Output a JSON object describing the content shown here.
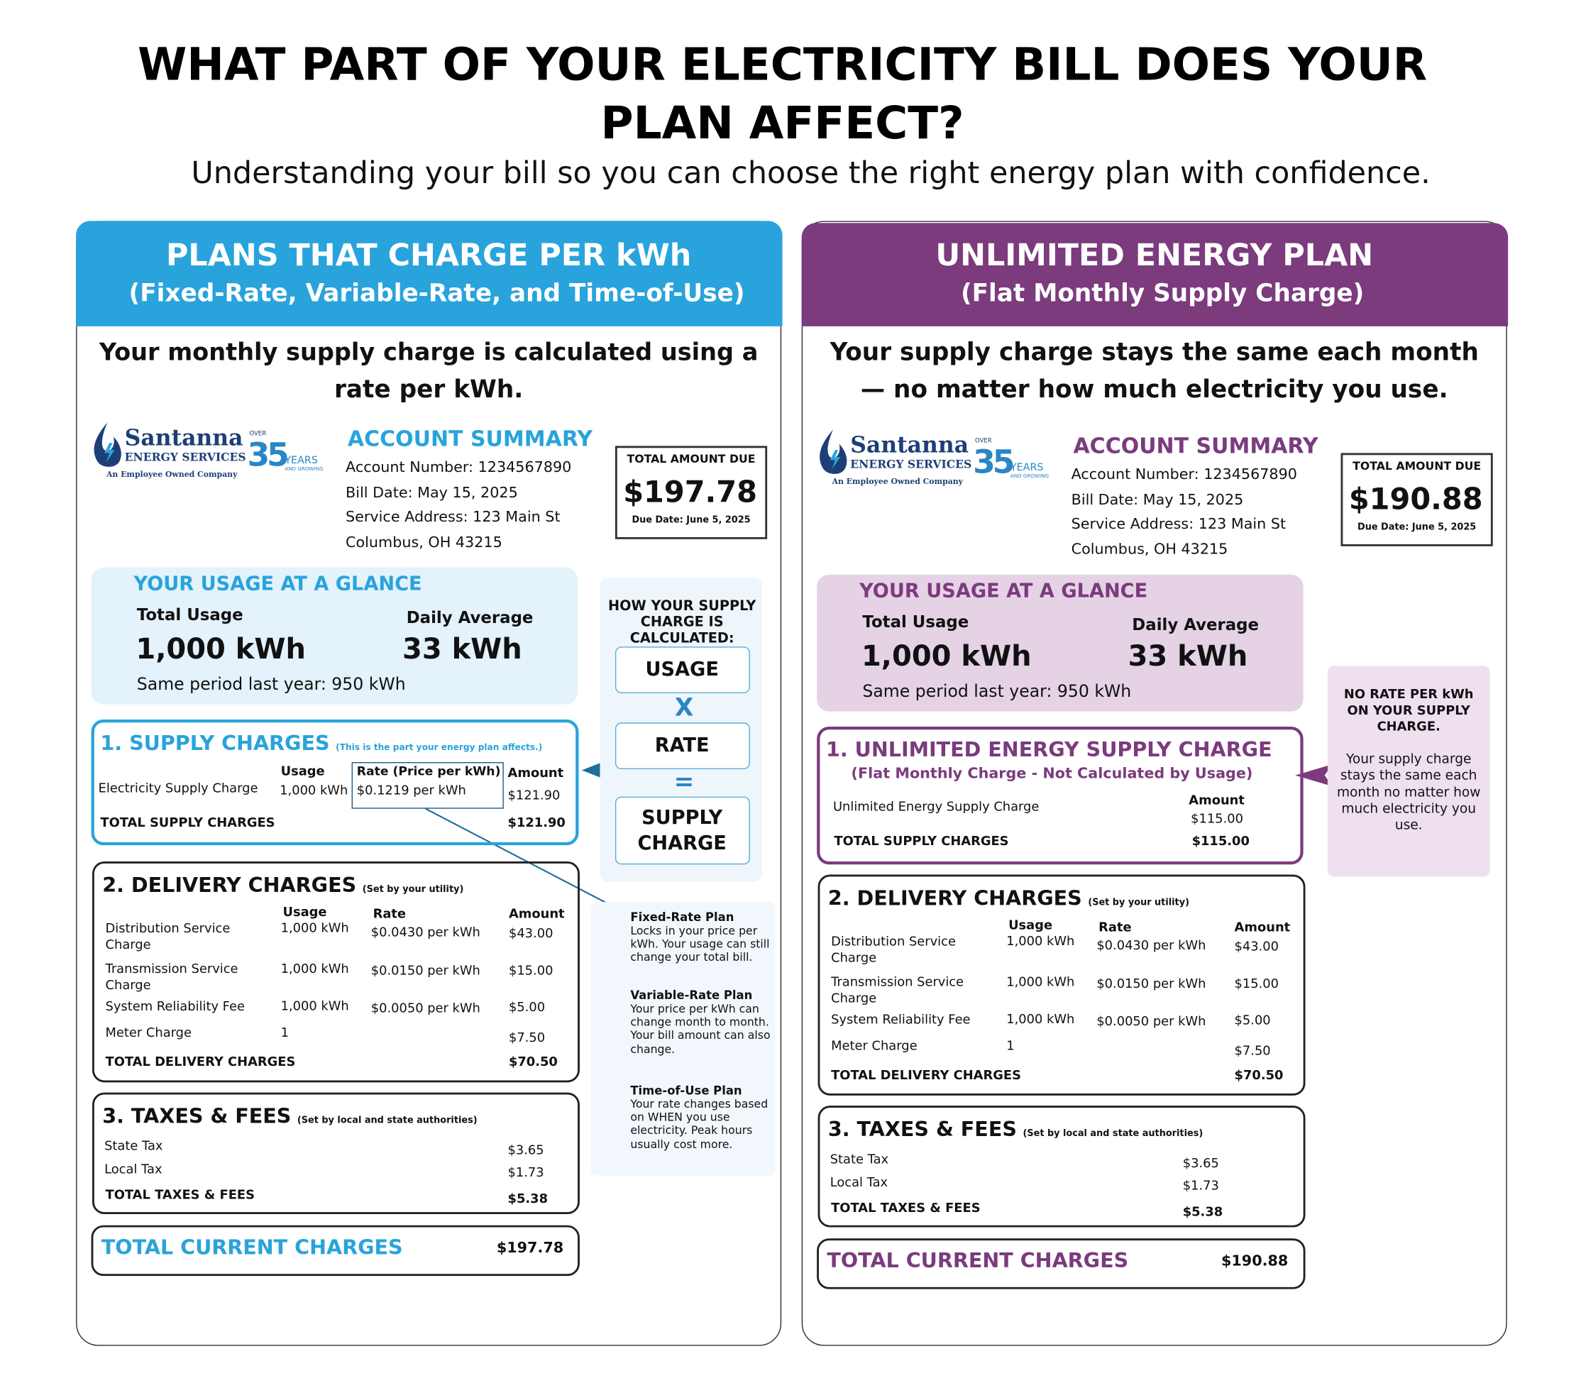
{
  "title": [
    "WHAT PART OF YOUR ELECTRICITY BILL DOES YOUR",
    "PLAN AFFECT?"
  ],
  "subtitle": "Understanding your bill so you can choose the right energy plan with confidence.",
  "left": {
    "header": "PLANS THAT CHARGE PER kWh",
    "subheader": "(Fixed-Rate, Variable-Rate, and Time-of-Use)",
    "intro": [
      "Your monthly supply charge is calculated using a",
      "rate per kWh."
    ],
    "logo": {
      "name": "Santanna",
      "line2": "ENERGY SERVICES",
      "tagline": "An Employee Owned Company",
      "over": "OVER",
      "number": "35",
      "years": "YEARS",
      "growing": "AND GROWING"
    },
    "account": {
      "title": "ACCOUNT SUMMARY",
      "lines": [
        "Account Number: 1234567890",
        "Bill Date: May 15, 2025",
        "Service Address: 123 Main St",
        "Columbus, OH 43215"
      ]
    },
    "total_due": {
      "label": "TOTAL AMOUNT DUE",
      "amount": "$197.78",
      "due_date": "Due Date: June 5, 2025"
    },
    "usage": {
      "title": "YOUR USAGE AT A GLANCE",
      "total_label": "Total Usage",
      "total_value": "1,000 kWh",
      "daily_label": "Daily Average",
      "daily_value": "33 kWh",
      "last_year": "Same period last year: 950 kWh"
    },
    "supply": {
      "title": "1. SUPPLY CHARGES",
      "note": "(This is the part your energy plan affects.)",
      "headers": {
        "usage": "Usage",
        "rate": "Rate (Price per kWh)",
        "amount": "Amount"
      },
      "rows": [
        {
          "label": "Electricity Supply Charge",
          "usage": "1,000 kWh",
          "rate": "$0.1219 per kWh",
          "amount": "$121.90"
        }
      ],
      "total": {
        "label": "TOTAL SUPPLY CHARGES",
        "amount": "$121.90"
      }
    },
    "delivery": {
      "title": "2. DELIVERY CHARGES",
      "note": "(Set by your utility)",
      "headers": {
        "usage": "Usage",
        "rate": "Rate",
        "amount": "Amount"
      },
      "rows": [
        {
          "label": "Distribution Service Charge",
          "usage": "1,000 kWh",
          "rate": "$0.0430 per kWh",
          "amount": "$43.00"
        },
        {
          "label": "Transmission Service Charge",
          "usage": "1,000 kWh",
          "rate": "$0.0150 per kWh",
          "amount": "$15.00"
        },
        {
          "label": "System Reliability Fee",
          "usage": "1,000 kWh",
          "rate": "$0.0050 per kWh",
          "amount": "$5.00"
        },
        {
          "label": "Meter Charge",
          "usage": "1",
          "amount": "$7.50"
        }
      ],
      "total": {
        "label": "TOTAL DELIVERY CHARGES",
        "amount": "$70.50"
      }
    },
    "taxes": {
      "title": "3. TAXES & FEES",
      "note": "(Set by local and state authorities)",
      "rows": [
        {
          "label": "State Tax",
          "amount": "$3.65"
        },
        {
          "label": "Local Tax",
          "amount": "$1.73"
        }
      ],
      "total": {
        "label": "TOTAL TAXES & FEES",
        "amount": "$5.38"
      }
    },
    "current": {
      "label": "TOTAL CURRENT CHARGES",
      "amount": "$197.78"
    }
  },
  "calc": {
    "title": "HOW YOUR SUPPLY CHARGE IS CALCULATED:",
    "usage": "USAGE",
    "times": "X",
    "rate": "RATE",
    "equals": "=",
    "result": "SUPPLY CHARGE"
  },
  "plans": [
    {
      "name": "Fixed-Rate Plan",
      "text": "Locks in your price per kWh. Your usage can still change your total bill."
    },
    {
      "name": "Variable-Rate Plan",
      "text": "Your price per kWh can change month to month. Your bill amount can also change."
    },
    {
      "name": "Time-of-Use Plan",
      "text": "Your rate changes based on WHEN you use electricity. Peak hours usually cost more."
    }
  ],
  "right": {
    "header": "UNLIMITED ENERGY PLAN",
    "subheader": "(Flat Monthly Supply Charge)",
    "intro": [
      "Your supply charge stays the same each month",
      "— no matter how much electricity you use."
    ],
    "logo": {
      "name": "Santanna",
      "line2": "ENERGY SERVICES",
      "tagline": "An Employee Owned Company",
      "over": "OVER",
      "number": "35",
      "years": "YEARS",
      "growing": "AND GROWING"
    },
    "account": {
      "title": "ACCOUNT SUMMARY",
      "lines": [
        "Account Number: 1234567890",
        "Bill Date: May 15, 2025",
        "Service Address: 123 Main St",
        "Columbus, OH 43215"
      ]
    },
    "total_due": {
      "label": "TOTAL AMOUNT DUE",
      "amount": "$190.88",
      "due_date": "Due Date: June 5, 2025"
    },
    "usage": {
      "title": "YOUR USAGE AT A GLANCE",
      "total_label": "Total Usage",
      "total_value": "1,000 kWh",
      "daily_label": "Daily Average",
      "daily_value": "33 kWh",
      "last_year": "Same period last year: 950 kWh"
    },
    "supply": {
      "title": "1. UNLIMITED ENERGY SUPPLY CHARGE",
      "note": "(Flat Monthly Charge - Not Calculated by Usage)",
      "headers": {
        "amount": "Amount"
      },
      "rows": [
        {
          "label": "Unlimited Energy Supply Charge",
          "amount": "$115.00"
        }
      ],
      "total": {
        "label": "TOTAL SUPPLY CHARGES",
        "amount": "$115.00"
      }
    },
    "delivery": {
      "title": "2. DELIVERY CHARGES",
      "note": "(Set by your utility)",
      "headers": {
        "usage": "Usage",
        "rate": "Rate",
        "amount": "Amount"
      },
      "rows": [
        {
          "label": "Distribution Service Charge",
          "usage": "1,000 kWh",
          "rate": "$0.0430 per kWh",
          "amount": "$43.00"
        },
        {
          "label": "Transmission Service Charge",
          "usage": "1,000 kWh",
          "rate": "$0.0150 per kWh",
          "amount": "$15.00"
        },
        {
          "label": "System Reliability Fee",
          "usage": "1,000 kWh",
          "rate": "$0.0050 per kWh",
          "amount": "$5.00"
        },
        {
          "label": "Meter Charge",
          "usage": "1",
          "amount": "$7.50"
        }
      ],
      "total": {
        "label": "TOTAL DELIVERY CHARGES",
        "amount": "$70.50"
      }
    },
    "taxes": {
      "title": "3. TAXES & FEES",
      "note": "(Set by local and state authorities)",
      "rows": [
        {
          "label": "State Tax",
          "amount": "$3.65"
        },
        {
          "label": "Local Tax",
          "amount": "$1.73"
        }
      ],
      "total": {
        "label": "TOTAL TAXES & FEES",
        "amount": "$5.38"
      }
    },
    "current": {
      "label": "TOTAL CURRENT CHARGES",
      "amount": "$190.88"
    }
  },
  "right_note": {
    "title": "NO RATE PER kWh ON YOUR SUPPLY CHARGE.",
    "text": "Your supply charge stays the same each month no matter how much electricity you use."
  }
}
